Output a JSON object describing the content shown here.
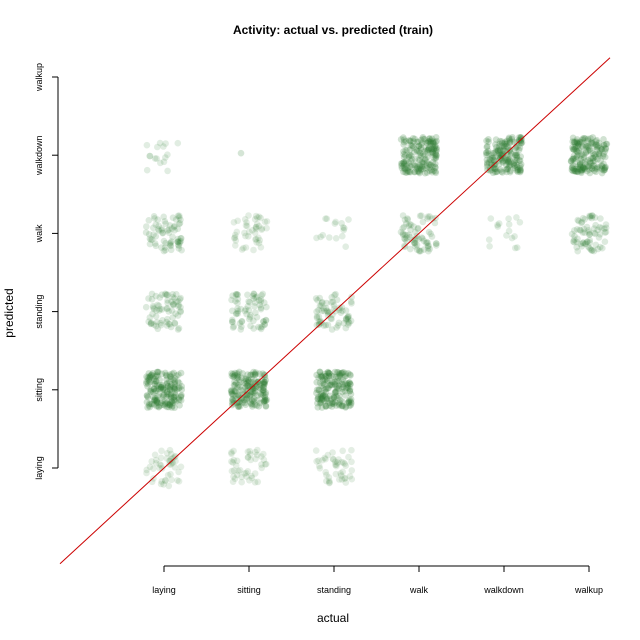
{
  "chart_data": {
    "type": "scatter",
    "title": "Activity: actual vs. predicted (train)",
    "xlabel": "actual",
    "ylabel": "predicted",
    "categories": [
      "laying",
      "sitting",
      "standing",
      "walk",
      "walkdown",
      "walkup"
    ],
    "point_color": "#2e7d32",
    "reference_line_color": "#cc0000",
    "reference_line": {
      "type": "identity",
      "label": ""
    },
    "jitter": true,
    "xlim": [
      0.4,
      6
    ],
    "ylim": [
      -0.2,
      6.1
    ],
    "cells": [
      {
        "actual": "laying",
        "predicted": "laying",
        "density": "low"
      },
      {
        "actual": "laying",
        "predicted": "sitting",
        "density": "high"
      },
      {
        "actual": "laying",
        "predicted": "standing",
        "density": "medium"
      },
      {
        "actual": "laying",
        "predicted": "walk",
        "density": "medium"
      },
      {
        "actual": "laying",
        "predicted": "walkdown",
        "density": "sparse"
      },
      {
        "actual": "sitting",
        "predicted": "laying",
        "density": "low"
      },
      {
        "actual": "sitting",
        "predicted": "sitting",
        "density": "high"
      },
      {
        "actual": "sitting",
        "predicted": "standing",
        "density": "medium"
      },
      {
        "actual": "sitting",
        "predicted": "walk",
        "density": "low"
      },
      {
        "actual": "sitting",
        "predicted": "walkdown",
        "density": "single"
      },
      {
        "actual": "standing",
        "predicted": "laying",
        "density": "low"
      },
      {
        "actual": "standing",
        "predicted": "sitting",
        "density": "high"
      },
      {
        "actual": "standing",
        "predicted": "standing",
        "density": "medium"
      },
      {
        "actual": "standing",
        "predicted": "walk",
        "density": "sparse"
      },
      {
        "actual": "walk",
        "predicted": "walk",
        "density": "medium"
      },
      {
        "actual": "walk",
        "predicted": "walkdown",
        "density": "high"
      },
      {
        "actual": "walkdown",
        "predicted": "walk",
        "density": "sparse"
      },
      {
        "actual": "walkdown",
        "predicted": "walkdown",
        "density": "high"
      },
      {
        "actual": "walkup",
        "predicted": "walk",
        "density": "medium"
      },
      {
        "actual": "walkup",
        "predicted": "walkdown",
        "density": "high"
      }
    ]
  }
}
